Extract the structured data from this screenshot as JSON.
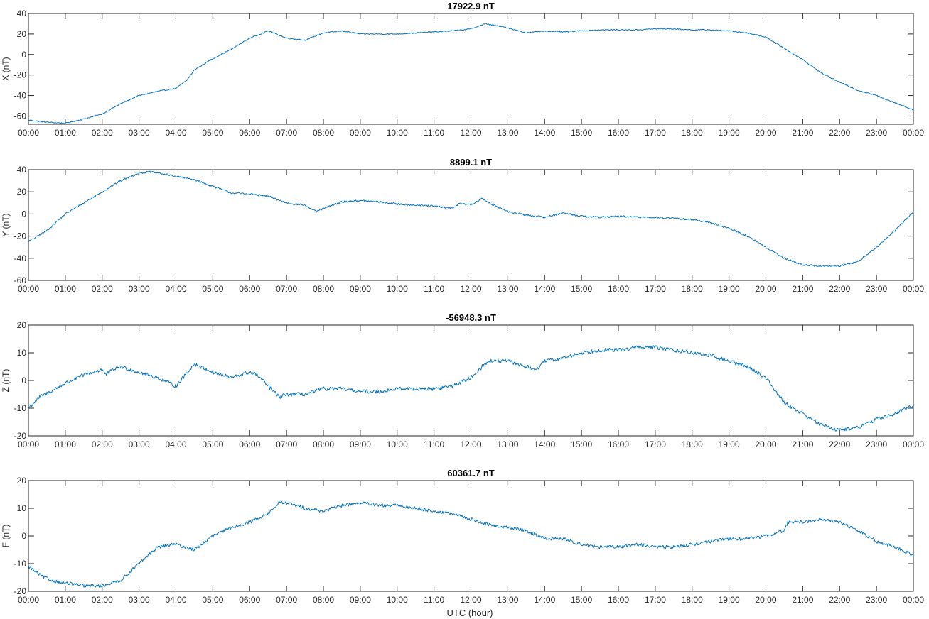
{
  "figure": {
    "xlabel": "UTC (hour)"
  },
  "chart_data": [
    {
      "type": "line",
      "title": "17922.9 nT",
      "ylabel": "X (nT)",
      "xlim": [
        0,
        24
      ],
      "ylim": [
        -68,
        40
      ],
      "yticks": [
        -60,
        -40,
        -20,
        0,
        20,
        40
      ],
      "x_tick_labels": [
        "00:00",
        "01:00",
        "02:00",
        "03:00",
        "04:00",
        "05:00",
        "06:00",
        "07:00",
        "08:00",
        "09:00",
        "10:00",
        "11:00",
        "12:00",
        "13:00",
        "14:00",
        "15:00",
        "16:00",
        "17:00",
        "18:00",
        "19:00",
        "20:00",
        "21:00",
        "22:00",
        "23:00",
        "00:00"
      ],
      "grid": false,
      "color": "#0072BD",
      "noise": 0.5,
      "x": [
        0,
        0.5,
        1.0,
        1.5,
        2.0,
        2.5,
        3.0,
        3.5,
        4.0,
        4.3,
        4.5,
        5.0,
        5.5,
        6.0,
        6.5,
        7.0,
        7.5,
        8.0,
        8.5,
        9.0,
        9.5,
        10.0,
        10.5,
        11.0,
        11.5,
        12.0,
        12.4,
        12.7,
        13.0,
        13.5,
        14.0,
        14.5,
        15.0,
        15.5,
        16.0,
        16.5,
        17.0,
        17.5,
        18.0,
        18.5,
        19.0,
        19.5,
        20.0,
        20.5,
        21.0,
        21.5,
        22.0,
        22.5,
        23.0,
        23.5,
        24.0
      ],
      "y": [
        -64,
        -66,
        -67,
        -63,
        -58,
        -48,
        -40,
        -36,
        -33,
        -25,
        -15,
        -4,
        5,
        16,
        23,
        16,
        14,
        21,
        23,
        20,
        20,
        20,
        21,
        22,
        23,
        25,
        30,
        28,
        26,
        21,
        23,
        22,
        23,
        24,
        24,
        24,
        25,
        25,
        24,
        24,
        23,
        21,
        17,
        6,
        -5,
        -18,
        -27,
        -35,
        -40,
        -47,
        -54
      ]
    },
    {
      "type": "line",
      "title": "8899.1 nT",
      "ylabel": "Y (nT)",
      "xlim": [
        0,
        24
      ],
      "ylim": [
        -60,
        40
      ],
      "yticks": [
        -60,
        -40,
        -20,
        0,
        20,
        40
      ],
      "x_tick_labels": [
        "00:00",
        "01:00",
        "02:00",
        "03:00",
        "04:00",
        "05:00",
        "06:00",
        "07:00",
        "08:00",
        "09:00",
        "10:00",
        "11:00",
        "12:00",
        "13:00",
        "14:00",
        "15:00",
        "16:00",
        "17:00",
        "18:00",
        "19:00",
        "20:00",
        "21:00",
        "22:00",
        "23:00",
        "00:00"
      ],
      "grid": false,
      "color": "#0072BD",
      "noise": 0.8,
      "x": [
        0,
        0.5,
        1.0,
        1.5,
        2.0,
        2.5,
        3.0,
        3.3,
        3.5,
        4.0,
        4.5,
        5.0,
        5.5,
        6.0,
        6.5,
        7.0,
        7.5,
        7.8,
        8.0,
        8.5,
        9.0,
        9.5,
        10.0,
        10.5,
        11.0,
        11.5,
        11.7,
        12.0,
        12.3,
        12.5,
        13.0,
        13.5,
        14.0,
        14.5,
        15.0,
        15.5,
        16.0,
        16.5,
        17.0,
        17.5,
        18.0,
        18.5,
        19.0,
        19.5,
        20.0,
        20.5,
        21.0,
        21.5,
        22.0,
        22.5,
        23.0,
        23.5,
        24.0
      ],
      "y": [
        -25,
        -15,
        0,
        10,
        20,
        30,
        37,
        38,
        37,
        34,
        31,
        25,
        19,
        18,
        16,
        10,
        8,
        2,
        5,
        11,
        12,
        11,
        9,
        8,
        7,
        5,
        10,
        8,
        14,
        10,
        2,
        -1,
        -3,
        1,
        -2,
        -3,
        -2,
        -3,
        -3,
        -4,
        -5,
        -8,
        -13,
        -20,
        -30,
        -40,
        -46,
        -47,
        -47,
        -43,
        -30,
        -15,
        2
      ]
    },
    {
      "type": "line",
      "title": "-56948.3 nT",
      "ylabel": "Z (nT)",
      "xlim": [
        0,
        24
      ],
      "ylim": [
        -20,
        20
      ],
      "yticks": [
        -20,
        -10,
        0,
        10,
        20
      ],
      "x_tick_labels": [
        "00:00",
        "01:00",
        "02:00",
        "03:00",
        "04:00",
        "05:00",
        "06:00",
        "07:00",
        "08:00",
        "09:00",
        "10:00",
        "11:00",
        "12:00",
        "13:00",
        "14:00",
        "15:00",
        "16:00",
        "17:00",
        "18:00",
        "19:00",
        "20:00",
        "21:00",
        "22:00",
        "23:00",
        "00:00"
      ],
      "grid": false,
      "color": "#0072BD",
      "noise": 0.7,
      "x": [
        0,
        0.3,
        0.6,
        1.0,
        1.5,
        2.0,
        2.1,
        2.3,
        2.5,
        3.0,
        3.5,
        4.0,
        4.5,
        5.0,
        5.5,
        6.0,
        6.2,
        6.5,
        6.8,
        7.0,
        7.5,
        8.0,
        8.5,
        9.0,
        9.5,
        10.0,
        10.5,
        11.0,
        11.5,
        12.0,
        12.3,
        12.5,
        13.0,
        13.5,
        13.8,
        14.0,
        14.5,
        15.0,
        15.5,
        16.0,
        16.5,
        17.0,
        17.5,
        18.0,
        18.5,
        19.0,
        19.5,
        20.0,
        20.5,
        21.0,
        21.5,
        22.0,
        22.5,
        23.0,
        23.5,
        24.0
      ],
      "y": [
        -10,
        -6,
        -4,
        -1,
        2,
        4,
        2,
        4,
        5,
        3,
        1,
        -2,
        6,
        3,
        1,
        3,
        2,
        -2,
        -6,
        -5,
        -5,
        -3,
        -3,
        -4,
        -4,
        -3,
        -3,
        -3,
        -2,
        1,
        5,
        7,
        7,
        5,
        4,
        7,
        8,
        10,
        11,
        11,
        12,
        12,
        11,
        10,
        9,
        7,
        5,
        1,
        -8,
        -12,
        -16,
        -18,
        -17,
        -14,
        -12,
        -9
      ]
    },
    {
      "type": "line",
      "title": "60361.7 nT",
      "ylabel": "F (nT)",
      "xlim": [
        0,
        24
      ],
      "ylim": [
        -20,
        20
      ],
      "yticks": [
        -20,
        -10,
        0,
        10,
        20
      ],
      "x_tick_labels": [
        "00:00",
        "01:00",
        "02:00",
        "03:00",
        "04:00",
        "05:00",
        "06:00",
        "07:00",
        "08:00",
        "09:00",
        "10:00",
        "11:00",
        "12:00",
        "13:00",
        "14:00",
        "15:00",
        "16:00",
        "17:00",
        "18:00",
        "19:00",
        "20:00",
        "21:00",
        "22:00",
        "23:00",
        "00:00"
      ],
      "grid": false,
      "color": "#0072BD",
      "noise": 0.6,
      "x": [
        0,
        0.3,
        0.6,
        1.0,
        1.5,
        2.0,
        2.5,
        3.0,
        3.5,
        4.0,
        4.5,
        5.0,
        5.5,
        6.0,
        6.5,
        6.8,
        7.0,
        7.5,
        8.0,
        8.5,
        9.0,
        9.5,
        10.0,
        10.5,
        11.0,
        11.5,
        12.0,
        12.5,
        13.0,
        13.5,
        14.0,
        14.5,
        15.0,
        15.5,
        16.0,
        16.5,
        17.0,
        17.5,
        18.0,
        18.5,
        19.0,
        19.5,
        20.0,
        20.5,
        20.6,
        21.0,
        21.5,
        22.0,
        22.5,
        23.0,
        23.5,
        24.0
      ],
      "y": [
        -11,
        -14,
        -16,
        -17,
        -18,
        -18,
        -16,
        -10,
        -4,
        -3,
        -5,
        0,
        3,
        5,
        8,
        12,
        12,
        10,
        9,
        11,
        12,
        11,
        11,
        10,
        9,
        8,
        6,
        4,
        3,
        2,
        -1,
        -1,
        -3,
        -4,
        -4,
        -3,
        -4,
        -4,
        -3,
        -2,
        -1,
        -1,
        0,
        2,
        5,
        5,
        6,
        5,
        2,
        -2,
        -4,
        -7
      ]
    }
  ]
}
